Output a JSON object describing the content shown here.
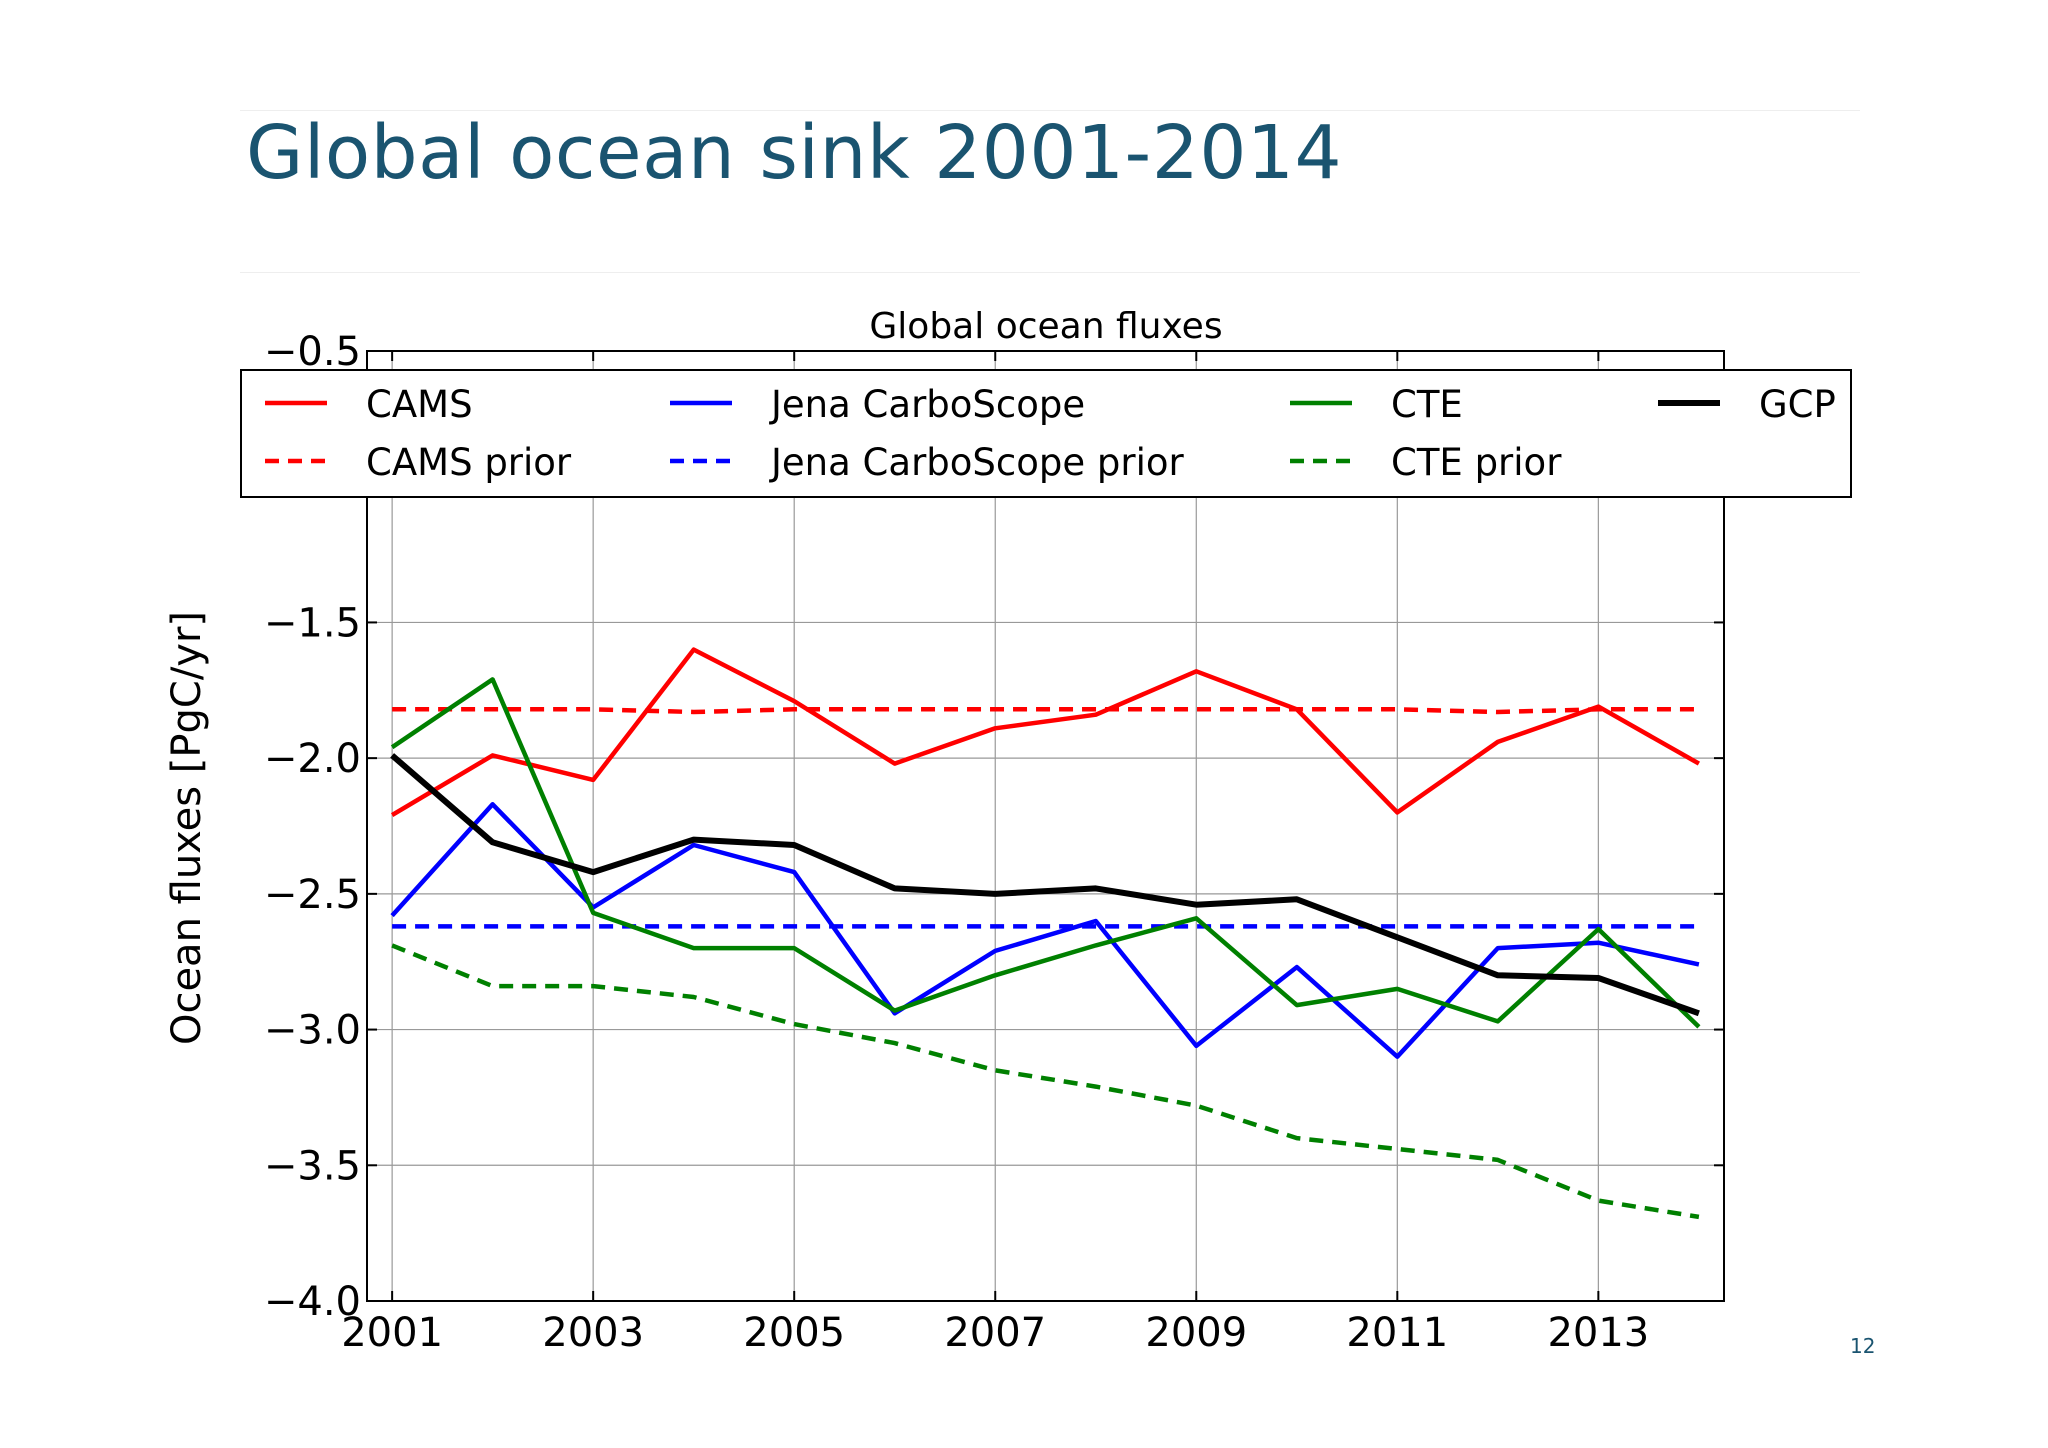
{
  "slide": {
    "title": "Global ocean sink 2001-2014",
    "page_number": "12",
    "title_color": "#1a5470"
  },
  "chart_data": {
    "type": "line",
    "title": "Global ocean fluxes",
    "xlabel": "",
    "ylabel": "Ocean fluxes [PgC/yr]",
    "x": [
      2001,
      2002,
      2003,
      2004,
      2005,
      2006,
      2007,
      2008,
      2009,
      2010,
      2011,
      2012,
      2013,
      2014
    ],
    "xlim": [
      2000.75,
      2014.25
    ],
    "ylim": [
      -4.0,
      -0.5
    ],
    "x_ticks": [
      2001,
      2003,
      2005,
      2007,
      2009,
      2011,
      2013
    ],
    "x_tick_labels": [
      "2001",
      "2003",
      "2005",
      "2007",
      "2009",
      "2011",
      "2013"
    ],
    "y_ticks": [
      -0.5,
      -1.0,
      -1.5,
      -2.0,
      -2.5,
      -3.0,
      -3.5,
      -4.0
    ],
    "y_tick_labels": [
      "−0.5",
      "",
      "−1.5",
      "−2.0",
      "−2.5",
      "−3.0",
      "−3.5",
      "−4.0"
    ],
    "grid": true,
    "legend_placement": "top",
    "series": [
      {
        "name": "CAMS",
        "style": "solid",
        "color": "#ff0000",
        "values": [
          -2.21,
          -1.99,
          -2.08,
          -1.6,
          -1.79,
          -2.02,
          -1.89,
          -1.84,
          -1.68,
          -1.82,
          -2.2,
          -1.94,
          -1.81,
          -2.02
        ]
      },
      {
        "name": "CAMS prior",
        "style": "dashed",
        "color": "#ff0000",
        "values": [
          -1.82,
          -1.82,
          -1.82,
          -1.83,
          -1.82,
          -1.82,
          -1.82,
          -1.82,
          -1.82,
          -1.82,
          -1.82,
          -1.83,
          -1.82,
          -1.82
        ]
      },
      {
        "name": "Jena CarboScope",
        "style": "solid",
        "color": "#0000ff",
        "values": [
          -2.58,
          -2.17,
          -2.55,
          -2.32,
          -2.42,
          -2.94,
          -2.71,
          -2.6,
          -3.06,
          -2.77,
          -3.1,
          -2.7,
          -2.68,
          -2.76
        ]
      },
      {
        "name": "Jena CarboScope prior",
        "style": "dashed",
        "color": "#0000ff",
        "values": [
          -2.62,
          -2.62,
          -2.62,
          -2.62,
          -2.62,
          -2.62,
          -2.62,
          -2.62,
          -2.62,
          -2.62,
          -2.62,
          -2.62,
          -2.62,
          -2.62
        ]
      },
      {
        "name": "CTE",
        "style": "solid",
        "color": "#008000",
        "values": [
          -1.96,
          -1.71,
          -2.57,
          -2.7,
          -2.7,
          -2.93,
          -2.8,
          -2.69,
          -2.59,
          -2.91,
          -2.85,
          -2.97,
          -2.63,
          -2.99
        ]
      },
      {
        "name": "CTE prior",
        "style": "dashed",
        "color": "#008000",
        "values": [
          -2.69,
          -2.84,
          -2.84,
          -2.88,
          -2.98,
          -3.05,
          -3.15,
          -3.21,
          -3.28,
          -3.4,
          -3.44,
          -3.48,
          -3.63,
          -3.69
        ]
      },
      {
        "name": "GCP",
        "style": "solid",
        "color": "#000000",
        "values": [
          -1.99,
          -2.31,
          -2.42,
          -2.3,
          -2.32,
          -2.48,
          -2.5,
          -2.48,
          -2.54,
          -2.52,
          -2.66,
          -2.8,
          -2.81,
          -2.94
        ]
      }
    ]
  }
}
